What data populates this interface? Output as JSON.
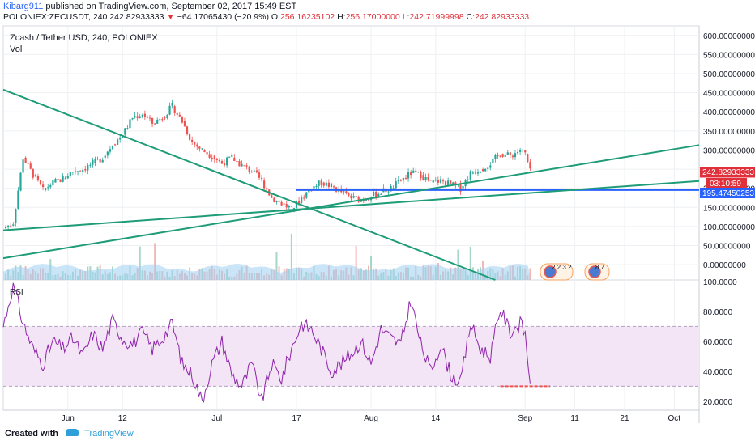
{
  "header": {
    "publisher": "Kibarg911",
    "published_text": "published on TradingView.com, September 02, 2017 15:49 EST",
    "symbol": "POLONIEX:ZECUSDT, 240",
    "last": "242.82933333",
    "change": "−64.17065430 (−20.9%)",
    "ohlc_o_label": "O:",
    "ohlc_o": "256.16235102",
    "ohlc_h_label": "H:",
    "ohlc_h": "256.17000000",
    "ohlc_l_label": "L:",
    "ohlc_l": "242.71999998",
    "ohlc_c_label": "C:",
    "ohlc_c": "242.82933333"
  },
  "price_pane": {
    "title": "Zcash / Tether USD, 240, POLONIEX",
    "vol_label": "Vol",
    "price_tag": "242.82933333",
    "countdown_tag": "03:10:59",
    "level_tag": "195.47450253",
    "event_badge_1": "2 2 3 2",
    "event_badge_2": "8 7"
  },
  "rsi_pane": {
    "title": "RSI"
  },
  "footer": {
    "created_with": "Created with",
    "brand": "TradingView"
  },
  "colors": {
    "trendline": "#1e9c78",
    "level_line": "#2962ff",
    "rsi_line": "#8e24aa",
    "rsi_band": "#f3e5f5",
    "up": "#26a69a",
    "down": "#ef5350",
    "price_tag": "#e0303a"
  },
  "chart_data": [
    {
      "type": "candlestick",
      "title": "Zcash / Tether USD, 240, POLONIEX",
      "price_axis_ticks": [
        "600.00000000",
        "550.00000000",
        "500.00000000",
        "450.00000000",
        "400.00000000",
        "350.00000000",
        "300.00000000",
        "250.00000000",
        "200.00000000",
        "150.00000000",
        "100.00000000",
        "50.00000000",
        "0.00000000"
      ],
      "time_axis_ticks": [
        "Jun",
        "12",
        "Jul",
        "17",
        "Aug",
        "14",
        "Sep",
        "11",
        "21",
        "Oct"
      ],
      "ylim": [
        -40,
        625
      ],
      "x_range": [
        "2017-05-19",
        "2017-10-06"
      ],
      "series": [
        {
          "name": "price",
          "points": [
            [
              "2017-05-19",
              95
            ],
            [
              "2017-05-21",
              110
            ],
            [
              "2017-05-23",
              280
            ],
            [
              "2017-05-25",
              235
            ],
            [
              "2017-05-27",
              195
            ],
            [
              "2017-05-29",
              215
            ],
            [
              "2017-05-31",
              225
            ],
            [
              "2017-06-02",
              245
            ],
            [
              "2017-06-04",
              250
            ],
            [
              "2017-06-06",
              265
            ],
            [
              "2017-06-08",
              280
            ],
            [
              "2017-06-10",
              315
            ],
            [
              "2017-06-12",
              340
            ],
            [
              "2017-06-14",
              385
            ],
            [
              "2017-06-16",
              395
            ],
            [
              "2017-06-18",
              370
            ],
            [
              "2017-06-20",
              385
            ],
            [
              "2017-06-22",
              415
            ],
            [
              "2017-06-24",
              375
            ],
            [
              "2017-06-26",
              320
            ],
            [
              "2017-06-28",
              300
            ],
            [
              "2017-06-30",
              285
            ],
            [
              "2017-07-02",
              265
            ],
            [
              "2017-07-04",
              280
            ],
            [
              "2017-07-06",
              260
            ],
            [
              "2017-07-08",
              245
            ],
            [
              "2017-07-10",
              220
            ],
            [
              "2017-07-12",
              175
            ],
            [
              "2017-07-14",
              160
            ],
            [
              "2017-07-16",
              145
            ],
            [
              "2017-07-18",
              175
            ],
            [
              "2017-07-20",
              200
            ],
            [
              "2017-07-22",
              215
            ],
            [
              "2017-07-24",
              205
            ],
            [
              "2017-07-26",
              190
            ],
            [
              "2017-07-28",
              175
            ],
            [
              "2017-07-30",
              170
            ],
            [
              "2017-08-01",
              180
            ],
            [
              "2017-08-03",
              190
            ],
            [
              "2017-08-05",
              200
            ],
            [
              "2017-08-07",
              220
            ],
            [
              "2017-08-09",
              240
            ],
            [
              "2017-08-11",
              235
            ],
            [
              "2017-08-13",
              215
            ],
            [
              "2017-08-15",
              220
            ],
            [
              "2017-08-17",
              210
            ],
            [
              "2017-08-19",
              200
            ],
            [
              "2017-08-21",
              240
            ],
            [
              "2017-08-23",
              250
            ],
            [
              "2017-08-25",
              265
            ],
            [
              "2017-08-27",
              290
            ],
            [
              "2017-08-29",
              285
            ],
            [
              "2017-08-31",
              300
            ],
            [
              "2017-09-01",
              290
            ],
            [
              "2017-09-02",
              243
            ]
          ]
        }
      ],
      "horizontal_levels": [
        242.83,
        195.47
      ],
      "trendlines": [
        {
          "from": [
            "2017-05-19",
            458
          ],
          "to": [
            "2017-08-26",
            -40
          ]
        },
        {
          "from": [
            "2017-05-19",
            17
          ],
          "to": [
            "2017-10-06",
            313
          ]
        },
        {
          "from": [
            "2017-05-19",
            90
          ],
          "to": [
            "2017-10-06",
            219
          ]
        }
      ]
    },
    {
      "type": "line",
      "title": "RSI",
      "axis_ticks": [
        "100.0000",
        "80.0000",
        "60.0000",
        "40.0000",
        "20.0000"
      ],
      "ylim": [
        14,
        101
      ],
      "bands": [
        30,
        70
      ],
      "series": [
        {
          "name": "RSI",
          "points": [
            [
              "2017-05-19",
              70
            ],
            [
              "2017-05-21",
              98
            ],
            [
              "2017-05-23",
              72
            ],
            [
              "2017-05-25",
              55
            ],
            [
              "2017-05-27",
              45
            ],
            [
              "2017-05-29",
              60
            ],
            [
              "2017-05-31",
              55
            ],
            [
              "2017-06-02",
              62
            ],
            [
              "2017-06-04",
              50
            ],
            [
              "2017-06-06",
              65
            ],
            [
              "2017-06-08",
              55
            ],
            [
              "2017-06-10",
              74
            ],
            [
              "2017-06-12",
              62
            ],
            [
              "2017-06-14",
              58
            ],
            [
              "2017-06-16",
              66
            ],
            [
              "2017-06-18",
              55
            ],
            [
              "2017-06-20",
              62
            ],
            [
              "2017-06-22",
              72
            ],
            [
              "2017-06-24",
              45
            ],
            [
              "2017-06-26",
              38
            ],
            [
              "2017-06-28",
              20
            ],
            [
              "2017-06-30",
              45
            ],
            [
              "2017-07-02",
              60
            ],
            [
              "2017-07-04",
              38
            ],
            [
              "2017-07-06",
              30
            ],
            [
              "2017-07-08",
              45
            ],
            [
              "2017-07-10",
              20
            ],
            [
              "2017-07-12",
              45
            ],
            [
              "2017-07-14",
              35
            ],
            [
              "2017-07-16",
              55
            ],
            [
              "2017-07-18",
              72
            ],
            [
              "2017-07-20",
              68
            ],
            [
              "2017-07-22",
              55
            ],
            [
              "2017-07-24",
              40
            ],
            [
              "2017-07-26",
              45
            ],
            [
              "2017-07-28",
              52
            ],
            [
              "2017-07-30",
              60
            ],
            [
              "2017-08-01",
              45
            ],
            [
              "2017-08-03",
              68
            ],
            [
              "2017-08-05",
              62
            ],
            [
              "2017-08-07",
              58
            ],
            [
              "2017-08-09",
              88
            ],
            [
              "2017-08-11",
              58
            ],
            [
              "2017-08-13",
              40
            ],
            [
              "2017-08-15",
              58
            ],
            [
              "2017-08-17",
              38
            ],
            [
              "2017-08-19",
              32
            ],
            [
              "2017-08-21",
              72
            ],
            [
              "2017-08-23",
              55
            ],
            [
              "2017-08-25",
              50
            ],
            [
              "2017-08-27",
              82
            ],
            [
              "2017-08-29",
              66
            ],
            [
              "2017-08-31",
              72
            ],
            [
              "2017-09-01",
              65
            ],
            [
              "2017-09-02",
              32
            ]
          ]
        }
      ],
      "support_segment": {
        "from": [
          "2017-08-27",
          30
        ],
        "to": [
          "2017-09-06",
          30
        ]
      }
    }
  ]
}
